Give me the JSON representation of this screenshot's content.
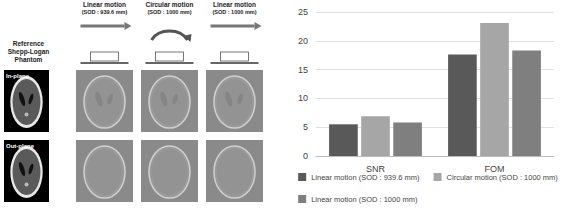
{
  "images": {
    "columns": [
      "Reference Shepp-Logan Phantom",
      "Linear motion (SOD : 939.6 mm)",
      "Circular motion (SOD : 1000 mm)",
      "Linear motion (SOD : 1000 mm)"
    ],
    "rows": [
      "In-plane",
      "Out-plane"
    ]
  },
  "chart_data": {
    "type": "bar",
    "categories": [
      "SNR",
      "FOM"
    ],
    "series": [
      {
        "name": "Linear motion (SOD : 939.6 mm)",
        "color": "#595959",
        "values": [
          5.5,
          17.6
        ]
      },
      {
        "name": "Circular motion (SOD : 1000 mm)",
        "color": "#a6a6a6",
        "values": [
          6.9,
          23.1
        ]
      },
      {
        "name": "Linear motion (SOD : 1000 mm)",
        "color": "#7f7f7f",
        "values": [
          5.8,
          18.3
        ]
      }
    ],
    "ylim": [
      0,
      25
    ],
    "yticks": [
      0,
      5,
      10,
      15,
      20,
      25
    ],
    "grid": true,
    "legend": "bottom"
  }
}
